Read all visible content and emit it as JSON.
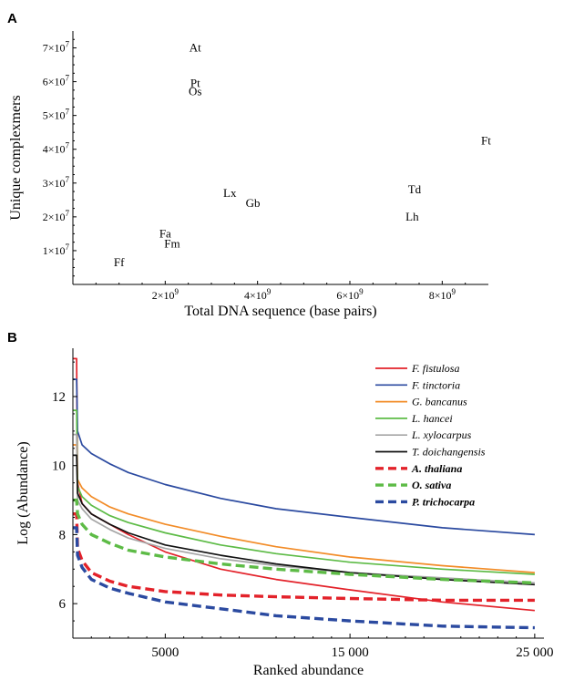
{
  "chart_data": [
    {
      "panel": "A",
      "type": "scatter",
      "xlabel": "Total DNA sequence (base pairs)",
      "ylabel": "Unique complexmers",
      "xlim": [
        0,
        9000000000
      ],
      "ylim": [
        0,
        75000000
      ],
      "x_ticks": [
        {
          "value": 2000000000,
          "base": "2×10",
          "exp": "9"
        },
        {
          "value": 4000000000,
          "base": "4×10",
          "exp": "9"
        },
        {
          "value": 6000000000,
          "base": "6×10",
          "exp": "9"
        },
        {
          "value": 8000000000,
          "base": "8×10",
          "exp": "9"
        }
      ],
      "y_ticks": [
        {
          "value": 10000000,
          "base": "1×10",
          "exp": "7"
        },
        {
          "value": 20000000,
          "base": "2×10",
          "exp": "7"
        },
        {
          "value": 30000000,
          "base": "3×10",
          "exp": "7"
        },
        {
          "value": 40000000,
          "base": "4×10",
          "exp": "7"
        },
        {
          "value": 50000000,
          "base": "5×10",
          "exp": "7"
        },
        {
          "value": 60000000,
          "base": "6×10",
          "exp": "7"
        },
        {
          "value": 70000000,
          "base": "7×10",
          "exp": "7"
        }
      ],
      "points": [
        {
          "label": "At",
          "x": 2650000000,
          "y": 70000000
        },
        {
          "label": "Pt",
          "x": 2650000000,
          "y": 59500000
        },
        {
          "label": "Os",
          "x": 2650000000,
          "y": 57000000
        },
        {
          "label": "Ft",
          "x": 8950000000,
          "y": 42500000
        },
        {
          "label": "Td",
          "x": 7400000000,
          "y": 28000000
        },
        {
          "label": "Lx",
          "x": 3400000000,
          "y": 27000000
        },
        {
          "label": "Gb",
          "x": 3900000000,
          "y": 24000000
        },
        {
          "label": "Lh",
          "x": 7350000000,
          "y": 20000000
        },
        {
          "label": "Fa",
          "x": 2000000000,
          "y": 15000000
        },
        {
          "label": "Fm",
          "x": 2150000000,
          "y": 12000000
        },
        {
          "label": "Ff",
          "x": 1000000000,
          "y": 6500000
        }
      ]
    },
    {
      "panel": "B",
      "type": "line",
      "xlabel": "Ranked abundance",
      "ylabel": "Log (Abundance)",
      "xlim": [
        0,
        25500
      ],
      "ylim": [
        5,
        13.4
      ],
      "x_ticks": [
        {
          "value": 5000,
          "label": "5000"
        },
        {
          "value": 15000,
          "label": "15 000"
        },
        {
          "value": 25000,
          "label": "25 000"
        }
      ],
      "y_ticks": [
        {
          "value": 6,
          "label": "6"
        },
        {
          "value": 8,
          "label": "8"
        },
        {
          "value": 10,
          "label": "10"
        },
        {
          "value": 12,
          "label": "12"
        }
      ],
      "legend_position": "top-right",
      "series": [
        {
          "name": "F. fistulosa",
          "color": "#e3222a",
          "dashed": false,
          "bold": false,
          "x": [
            0,
            200,
            250,
            500,
            1000,
            2000,
            3000,
            5000,
            8000,
            11000,
            15000,
            20000,
            25000
          ],
          "y": [
            13.1,
            13.1,
            9.5,
            8.9,
            8.6,
            8.3,
            8.0,
            7.5,
            7.0,
            6.7,
            6.4,
            6.05,
            5.8
          ]
        },
        {
          "name": "F. tinctoria",
          "color": "#2b4aa0",
          "dashed": false,
          "bold": false,
          "x": [
            0,
            200,
            250,
            500,
            1000,
            2000,
            3000,
            5000,
            8000,
            11000,
            15000,
            20000,
            25000
          ],
          "y": [
            12.5,
            12.5,
            11.0,
            10.6,
            10.35,
            10.05,
            9.8,
            9.45,
            9.05,
            8.75,
            8.5,
            8.2,
            8.0
          ]
        },
        {
          "name": "G. bancanus",
          "color": "#f28c28",
          "dashed": false,
          "bold": false,
          "x": [
            0,
            200,
            250,
            500,
            1000,
            2000,
            3000,
            5000,
            8000,
            11000,
            15000,
            20000,
            25000
          ],
          "y": [
            10.6,
            10.6,
            9.6,
            9.35,
            9.1,
            8.8,
            8.6,
            8.3,
            7.95,
            7.65,
            7.35,
            7.1,
            6.9
          ]
        },
        {
          "name": "L. hancei",
          "color": "#5dbb46",
          "dashed": false,
          "bold": false,
          "x": [
            0,
            200,
            250,
            500,
            1000,
            2000,
            3000,
            5000,
            8000,
            11000,
            15000,
            20000,
            25000
          ],
          "y": [
            11.6,
            11.6,
            9.4,
            9.1,
            8.85,
            8.55,
            8.35,
            8.05,
            7.7,
            7.45,
            7.2,
            7.0,
            6.85
          ]
        },
        {
          "name": "L. xylocarpus",
          "color": "#a6a6a6",
          "dashed": false,
          "bold": false,
          "x": [
            0,
            200,
            250,
            500,
            1000,
            2000,
            3000,
            5000,
            8000,
            11000,
            15000,
            20000,
            25000
          ],
          "y": [
            10.9,
            10.9,
            9.0,
            8.75,
            8.45,
            8.15,
            7.9,
            7.6,
            7.3,
            7.1,
            6.9,
            6.75,
            6.6
          ]
        },
        {
          "name": "T. doichangensis",
          "color": "#111111",
          "dashed": false,
          "bold": false,
          "x": [
            0,
            200,
            250,
            500,
            1000,
            2000,
            3000,
            5000,
            8000,
            11000,
            15000,
            20000,
            25000
          ],
          "y": [
            10.3,
            10.3,
            9.2,
            8.9,
            8.6,
            8.3,
            8.05,
            7.7,
            7.4,
            7.15,
            6.9,
            6.7,
            6.55
          ]
        },
        {
          "name": "A. thaliana",
          "color": "#e3222a",
          "dashed": true,
          "bold": true,
          "x": [
            0,
            200,
            250,
            500,
            1000,
            2000,
            3000,
            5000,
            8000,
            11000,
            15000,
            20000,
            25000
          ],
          "y": [
            8.6,
            8.6,
            7.6,
            7.25,
            6.9,
            6.65,
            6.5,
            6.35,
            6.25,
            6.2,
            6.15,
            6.1,
            6.1
          ]
        },
        {
          "name": "O. sativa",
          "color": "#5dbb46",
          "dashed": true,
          "bold": true,
          "x": [
            0,
            200,
            250,
            500,
            1000,
            2000,
            3000,
            5000,
            8000,
            11000,
            15000,
            20000,
            25000
          ],
          "y": [
            9.0,
            9.0,
            8.6,
            8.3,
            8.0,
            7.75,
            7.55,
            7.35,
            7.15,
            7.0,
            6.85,
            6.7,
            6.6
          ]
        },
        {
          "name": "P. trichocarpa",
          "color": "#2b4aa0",
          "dashed": true,
          "bold": true,
          "x": [
            0,
            200,
            250,
            500,
            1000,
            2000,
            3000,
            5000,
            8000,
            11000,
            15000,
            20000,
            25000
          ],
          "y": [
            8.2,
            8.2,
            7.4,
            7.05,
            6.7,
            6.45,
            6.3,
            6.05,
            5.85,
            5.65,
            5.5,
            5.35,
            5.3
          ]
        }
      ]
    }
  ]
}
